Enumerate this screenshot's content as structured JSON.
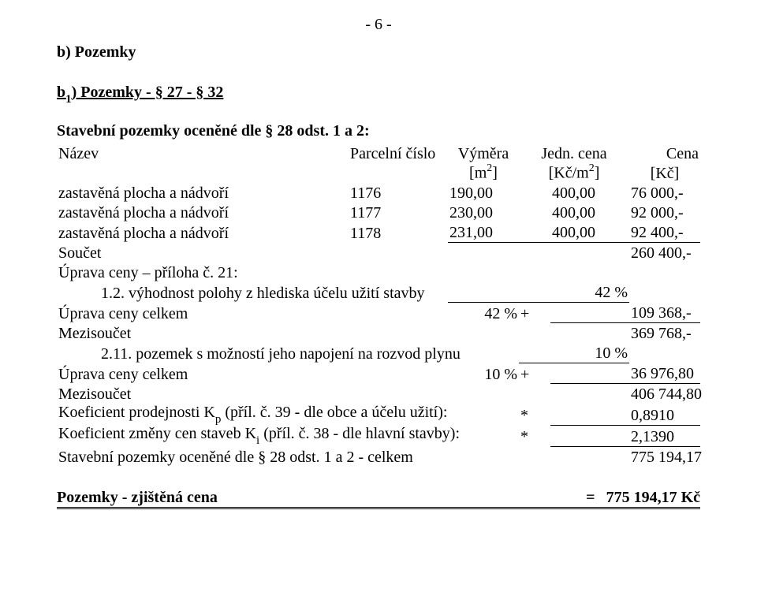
{
  "page_number": "- 6 -",
  "section_b": "b) Pozemky",
  "section_b1_prefix": "b",
  "section_b1_sub": "1",
  "section_b1_rest": ") Pozemky   - § 27 - § 32",
  "subtitle": "Stavební pozemky oceněné dle § 28 odst. 1 a 2:",
  "header": {
    "name": "Název",
    "parcel": "Parcelní číslo",
    "area": "Výměra",
    "jedn": "Jedn. cena",
    "cena": "Cena",
    "m2_open": "[m",
    "m2_sup": "2",
    "m2_close": "]",
    "kcm2_open": "[Kč/m",
    "kcm2_sup": "2",
    "kcm2_close": "]",
    "kc": "[Kč]"
  },
  "rows": [
    {
      "label": "zastavěná plocha a nádvoří",
      "parcel": "1176",
      "area": "190,00",
      "unit": "400,00",
      "total": "76 000,-"
    },
    {
      "label": "zastavěná plocha a nádvoří",
      "parcel": "1177",
      "area": "230,00",
      "unit": "400,00",
      "total": "92 000,-"
    },
    {
      "label": "zastavěná plocha a nádvoří",
      "parcel": "1178",
      "area": "231,00",
      "unit": "400,00",
      "total": "92 400,-"
    }
  ],
  "sum_label": "Součet",
  "sum_total": "260 400,-",
  "adj_header": "Úprava ceny – příloha č. 21:",
  "adj1_label": "1.2. výhodnost polohy z hlediska účelu užití stavby",
  "adj1_pct": "42 %",
  "adj_row1_label": "Úprava ceny celkem",
  "adj_row1_pct": "42 %",
  "plus": "+",
  "adj_row1_total": "109 368,-",
  "mezisoucet": "Mezisoučet",
  "mezisoucet1_total": "369 768,-",
  "adj2_label": "2.11. pozemek s možností jeho napojení na rozvod plynu",
  "adj2_pct": "10 %",
  "adj_row2_label": "Úprava ceny celkem",
  "adj_row2_pct": "10 %",
  "adj_row2_total": "36 976,80",
  "mezisoucet2_total": "406 744,80",
  "kp_label_pre": "Koeficient prodejnosti K",
  "kp_sub": "p",
  "kp_label_post": " (příl. č. 39 - dle obce a účelu užití):",
  "star": "*",
  "kp_val": "0,8910",
  "ki_label_pre": "Koeficient změny cen staveb K",
  "ki_sub": "i",
  "ki_label_post": " (příl. č. 38 - dle hlavní stavby):",
  "ki_val": "2,1390",
  "final_label": "Stavební pozemky oceněné dle § 28 odst. 1 a 2 - celkem",
  "final_total": "775 194,17",
  "footer_label": "Pozemky - zjištěná cena",
  "eq": "=",
  "footer_total": "775 194,17 Kč"
}
